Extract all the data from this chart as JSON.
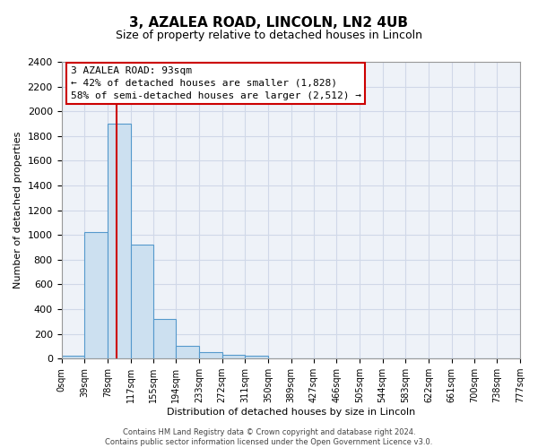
{
  "title": "3, AZALEA ROAD, LINCOLN, LN2 4UB",
  "subtitle": "Size of property relative to detached houses in Lincoln",
  "xlabel": "Distribution of detached houses by size in Lincoln",
  "ylabel": "Number of detached properties",
  "bar_edges": [
    0,
    39,
    78,
    117,
    155,
    194,
    233,
    272,
    311,
    350,
    389,
    427,
    466,
    505,
    544,
    583,
    622,
    661,
    700,
    738,
    777
  ],
  "bar_heights": [
    20,
    1020,
    1900,
    920,
    320,
    105,
    50,
    30,
    20,
    0,
    0,
    0,
    0,
    0,
    0,
    0,
    0,
    0,
    0,
    0
  ],
  "tick_labels": [
    "0sqm",
    "39sqm",
    "78sqm",
    "117sqm",
    "155sqm",
    "194sqm",
    "233sqm",
    "272sqm",
    "311sqm",
    "350sqm",
    "389sqm",
    "427sqm",
    "466sqm",
    "505sqm",
    "544sqm",
    "583sqm",
    "622sqm",
    "661sqm",
    "700sqm",
    "738sqm",
    "777sqm"
  ],
  "bar_color": "#cce0f0",
  "bar_edge_color": "#5599cc",
  "vline_x": 93,
  "vline_color": "#cc0000",
  "ylim": [
    0,
    2400
  ],
  "yticks": [
    0,
    200,
    400,
    600,
    800,
    1000,
    1200,
    1400,
    1600,
    1800,
    2000,
    2200,
    2400
  ],
  "annotation_line1": "3 AZALEA ROAD: 93sqm",
  "annotation_line2": "← 42% of detached houses are smaller (1,828)",
  "annotation_line3": "58% of semi-detached houses are larger (2,512) →",
  "footer_text": "Contains HM Land Registry data © Crown copyright and database right 2024.\nContains public sector information licensed under the Open Government Licence v3.0.",
  "grid_color": "#d0d8e8",
  "background_color": "#eef2f8",
  "title_fontsize": 11,
  "subtitle_fontsize": 9,
  "ylabel_fontsize": 8,
  "xlabel_fontsize": 8,
  "tick_fontsize": 7,
  "annotation_fontsize": 8,
  "footer_fontsize": 6
}
